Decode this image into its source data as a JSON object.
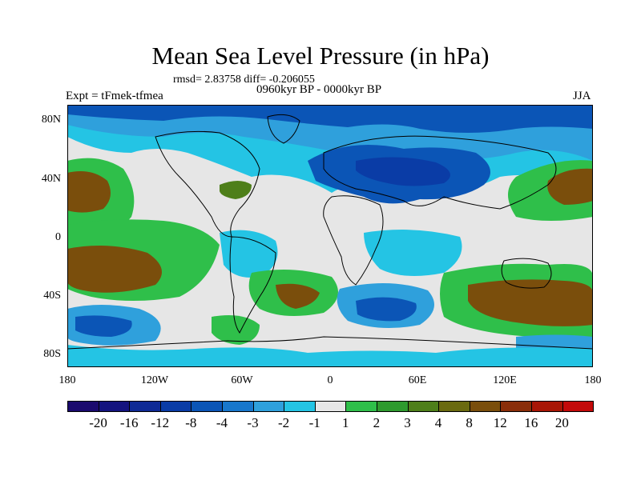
{
  "title": "Mean Sea Level Pressure (in hPa)",
  "stats": "rmsd= 2.83758 diff= -0.206055",
  "period": "0960kyr BP - 0000kyr BP",
  "experiment": "Expt = tFmek-tfmea",
  "season": "JJA",
  "lat_labels": [
    "80N",
    "40N",
    "0",
    "40S",
    "80S"
  ],
  "lon_labels": [
    "180",
    "120W",
    "60W",
    "0",
    "60E",
    "120E",
    "180"
  ],
  "legend": {
    "colors": [
      "#1a0a6e",
      "#14147f",
      "#0f2a95",
      "#0a3ca6",
      "#0b55b6",
      "#1877cc",
      "#2fa0dc",
      "#24c4e4",
      "#e6e6e6",
      "#2fbf4a",
      "#2e9a2e",
      "#4e7f1a",
      "#6a6a10",
      "#7a4e0c",
      "#8a2e0a",
      "#a81606",
      "#c30a0a"
    ],
    "labels": [
      "-20",
      "-16",
      "-12",
      "-8",
      "-4",
      "-3",
      "-2",
      "-1",
      "1",
      "2",
      "3",
      "4",
      "8",
      "12",
      "16",
      "20"
    ]
  },
  "palette": {
    "ocean_neutral": "#e6e6e6",
    "cyan": "#24c4e4",
    "light_blue": "#2fa0dc",
    "mid_blue": "#1877cc",
    "blue": "#0b55b6",
    "dark_blue": "#0a3ca6",
    "green": "#2fbf4a",
    "olive": "#4e7f1a",
    "brown": "#7a4e0c"
  }
}
